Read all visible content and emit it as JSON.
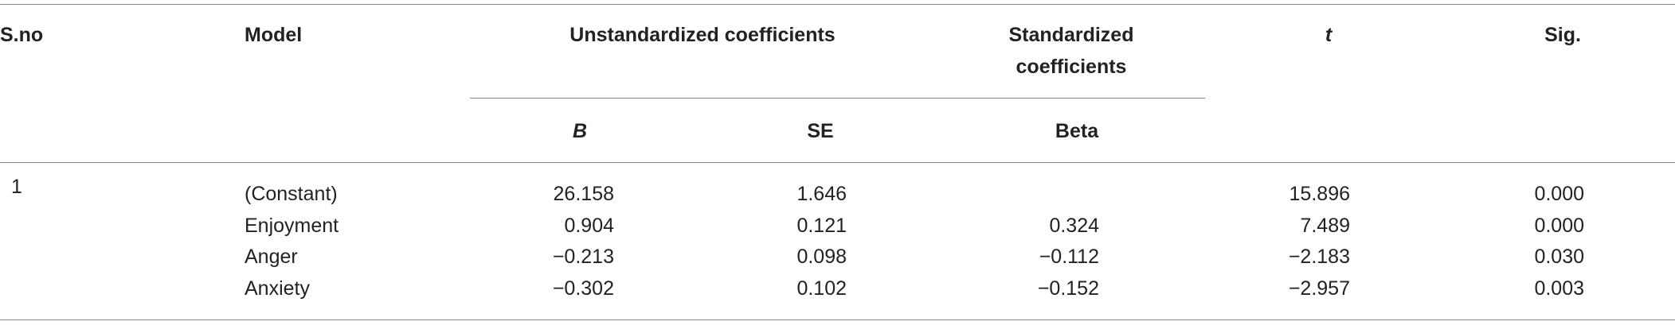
{
  "table": {
    "headers": {
      "sno": "S.no",
      "model": "Model",
      "unstandardized": "Unstandardized coefficients",
      "standardized": "Standardized coefficients",
      "t": "t",
      "sig": "Sig.",
      "b": "B",
      "se": "SE",
      "beta": "Beta"
    },
    "group": "1",
    "rows": [
      [
        "(Constant)",
        "26.158",
        "1.646",
        null,
        "15.896",
        "0.000"
      ],
      [
        "Enjoyment",
        "0.904",
        "0.121",
        "0.324",
        "7.489",
        "0.000"
      ],
      [
        "Anger",
        "−0.213",
        "0.098",
        "−0.112",
        "−2.183",
        "0.030"
      ],
      [
        "Anxiety",
        "−0.302",
        "0.102",
        "−0.152",
        "−2.957",
        "0.003"
      ]
    ]
  }
}
